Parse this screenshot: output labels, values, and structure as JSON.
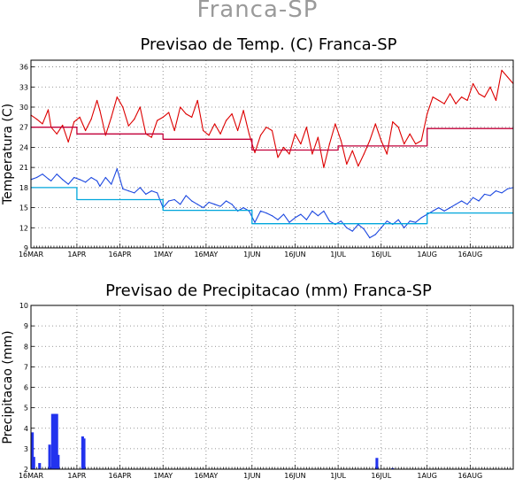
{
  "page_title": "Franca-SP",
  "colors": {
    "tmax": "#dd0000",
    "tmax_clim": "#c2003a",
    "tmin": "#1c48e0",
    "tmin_clim": "#00a6dc",
    "precip": "#2233ee",
    "grid": "#777777",
    "frame": "#000000",
    "title_main": "#9a9a9a"
  },
  "chart_data": [
    {
      "type": "line",
      "title": "Previsao de Temp. (C) Franca-SP",
      "ylabel": "Temperatura (C)",
      "xlabel": "",
      "x_tick_labels": [
        "16MAR",
        "1APR",
        "16APR",
        "1MAY",
        "16MAY",
        "1JUN",
        "16JUN",
        "1JUL",
        "16JUL",
        "1AUG",
        "16AUG"
      ],
      "x_tick_days": [
        0,
        16,
        31,
        46,
        61,
        77,
        92,
        107,
        122,
        138,
        153
      ],
      "xlim_days": [
        0,
        168
      ],
      "y_ticks": [
        9,
        12,
        15,
        18,
        21,
        24,
        27,
        30,
        33,
        36
      ],
      "ylim": [
        9,
        37
      ],
      "grid": true,
      "series": [
        {
          "key": "tmax",
          "days": [
            0,
            2,
            4,
            6,
            7,
            9,
            11,
            13,
            15,
            17,
            19,
            21,
            23,
            24,
            26,
            28,
            30,
            32,
            34,
            36,
            38,
            40,
            42,
            44,
            46,
            48,
            50,
            52,
            54,
            56,
            58,
            60,
            62,
            64,
            66,
            68,
            70,
            72,
            74,
            76,
            78,
            80,
            82,
            84,
            86,
            88,
            90,
            92,
            94,
            96,
            98,
            100,
            102,
            104,
            106,
            108,
            110,
            112,
            114,
            116,
            118,
            120,
            122,
            124,
            126,
            128,
            130,
            132,
            134,
            136,
            138,
            140,
            142,
            144,
            146,
            148,
            150,
            152,
            154,
            156,
            158,
            160,
            162,
            164,
            166,
            168
          ],
          "values": [
            28.8,
            28.2,
            27.5,
            29.6,
            27.0,
            26.0,
            27.3,
            24.8,
            27.8,
            28.5,
            26.5,
            28.2,
            31.0,
            29.5,
            25.8,
            28.5,
            31.5,
            30.0,
            27.2,
            28.2,
            30.0,
            26.0,
            25.5,
            28.0,
            28.5,
            29.2,
            26.5,
            30.0,
            29.0,
            28.5,
            31.0,
            26.5,
            25.8,
            27.5,
            26.0,
            28.0,
            29.0,
            26.5,
            29.5,
            26.0,
            23.2,
            25.8,
            27.0,
            26.5,
            22.5,
            24.0,
            23.0,
            26.0,
            24.5,
            27.0,
            23.0,
            25.5,
            21.0,
            24.5,
            27.5,
            25.0,
            21.5,
            23.5,
            21.2,
            23.0,
            25.0,
            27.5,
            25.0,
            23.0,
            27.8,
            27.0,
            24.5,
            26.0,
            24.5,
            25.0,
            29.0,
            31.5,
            31.0,
            30.5,
            32.0,
            30.5,
            31.5,
            31.0,
            33.5,
            32.0,
            31.5,
            33.0,
            31.0,
            35.5,
            34.5,
            33.5
          ]
        },
        {
          "key": "tmax_clim",
          "days": [
            0,
            16,
            16,
            46,
            46,
            77,
            77,
            107,
            107,
            138,
            138,
            168
          ],
          "values": [
            27.0,
            27.0,
            26.0,
            26.0,
            25.2,
            25.2,
            23.6,
            23.6,
            24.2,
            24.2,
            26.8,
            26.8
          ]
        },
        {
          "key": "tmin",
          "days": [
            0,
            2,
            4,
            6,
            7,
            9,
            11,
            13,
            15,
            17,
            19,
            21,
            23,
            24,
            26,
            28,
            30,
            32,
            34,
            36,
            38,
            40,
            42,
            44,
            46,
            48,
            50,
            52,
            54,
            56,
            58,
            60,
            62,
            64,
            66,
            68,
            70,
            72,
            74,
            76,
            78,
            80,
            82,
            84,
            86,
            88,
            90,
            92,
            94,
            96,
            98,
            100,
            102,
            104,
            106,
            108,
            110,
            112,
            114,
            116,
            118,
            120,
            122,
            124,
            126,
            128,
            130,
            132,
            134,
            136,
            138,
            140,
            142,
            144,
            146,
            148,
            150,
            152,
            154,
            156,
            158,
            160,
            162,
            164,
            166,
            168
          ],
          "values": [
            19.2,
            19.5,
            20.0,
            19.3,
            19.0,
            20.0,
            19.2,
            18.5,
            19.5,
            19.2,
            18.8,
            19.5,
            19.0,
            18.2,
            19.5,
            18.5,
            20.8,
            17.8,
            17.5,
            17.2,
            18.0,
            17.0,
            17.5,
            17.2,
            15.0,
            16.0,
            16.2,
            15.5,
            16.8,
            16.0,
            15.5,
            15.0,
            15.8,
            15.5,
            15.2,
            16.0,
            15.5,
            14.5,
            15.0,
            14.5,
            12.8,
            14.5,
            14.2,
            13.8,
            13.2,
            14.0,
            12.8,
            13.5,
            14.0,
            13.2,
            14.5,
            13.8,
            14.5,
            13.0,
            12.5,
            13.0,
            12.0,
            11.5,
            12.5,
            11.8,
            10.5,
            11.0,
            12.0,
            13.0,
            12.5,
            13.2,
            12.0,
            13.0,
            12.8,
            13.5,
            14.0,
            14.5,
            15.0,
            14.5,
            15.0,
            15.5,
            16.0,
            15.5,
            16.5,
            16.0,
            17.0,
            16.8,
            17.5,
            17.2,
            17.8,
            18.0
          ]
        },
        {
          "key": "tmin_clim",
          "days": [
            0,
            16,
            16,
            46,
            46,
            77,
            77,
            138,
            138,
            168
          ],
          "values": [
            18.0,
            18.0,
            16.2,
            16.2,
            14.6,
            14.6,
            12.6,
            12.6,
            14.2,
            14.2
          ]
        }
      ]
    },
    {
      "type": "bar",
      "title": "Previsao de Precipitacao (mm) Franca-SP",
      "ylabel": "Precipitacao (mm)",
      "xlabel": "",
      "x_tick_labels": [
        "16MAR",
        "1APR",
        "16APR",
        "1MAY",
        "16MAY",
        "1JUN",
        "16JUN",
        "1JUL",
        "16JUL",
        "1AUG",
        "16AUG"
      ],
      "x_tick_days": [
        0,
        16,
        31,
        46,
        61,
        77,
        92,
        107,
        122,
        138,
        153
      ],
      "xlim_days": [
        0,
        168
      ],
      "y_ticks": [
        2,
        3,
        4,
        5,
        6,
        7,
        8,
        9,
        10
      ],
      "ylim": [
        2,
        10
      ],
      "grid": true,
      "bars": {
        "days": [
          0.5,
          1.0,
          3.0,
          6.5,
          7.5,
          8.0,
          8.5,
          9.0,
          9.5,
          18.0,
          18.5,
          120.5,
          126.0
        ],
        "values": [
          3.8,
          2.6,
          2.3,
          3.2,
          4.7,
          4.7,
          4.7,
          4.7,
          2.7,
          3.6,
          3.5,
          2.55,
          2.05
        ]
      }
    }
  ]
}
